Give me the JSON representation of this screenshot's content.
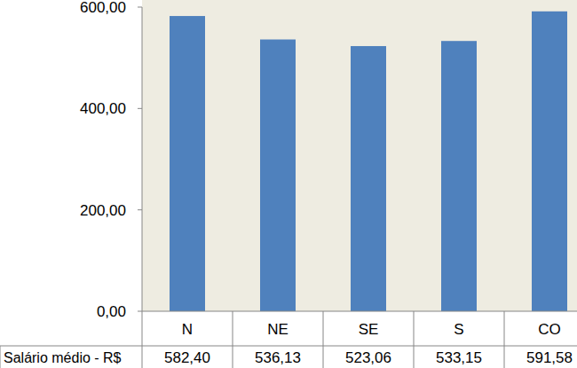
{
  "chart_data": {
    "type": "bar",
    "categories": [
      "N",
      "NE",
      "SE",
      "S",
      "CO"
    ],
    "series": [
      {
        "name": "Salário médio - R$",
        "color": "#4f81bd",
        "values": [
          582.4,
          536.13,
          523.06,
          533.15,
          591.58
        ],
        "value_labels": [
          "582,40",
          "536,13",
          "523,06",
          "533,15",
          "591,58"
        ]
      }
    ],
    "ylim": [
      0,
      600
    ],
    "yticks": [
      {
        "value": 0,
        "label": "0,00"
      },
      {
        "value": 200,
        "label": "200,00"
      },
      {
        "value": 400,
        "label": "400,00"
      },
      {
        "value": 600,
        "label": "600,00"
      }
    ],
    "grid": false
  }
}
